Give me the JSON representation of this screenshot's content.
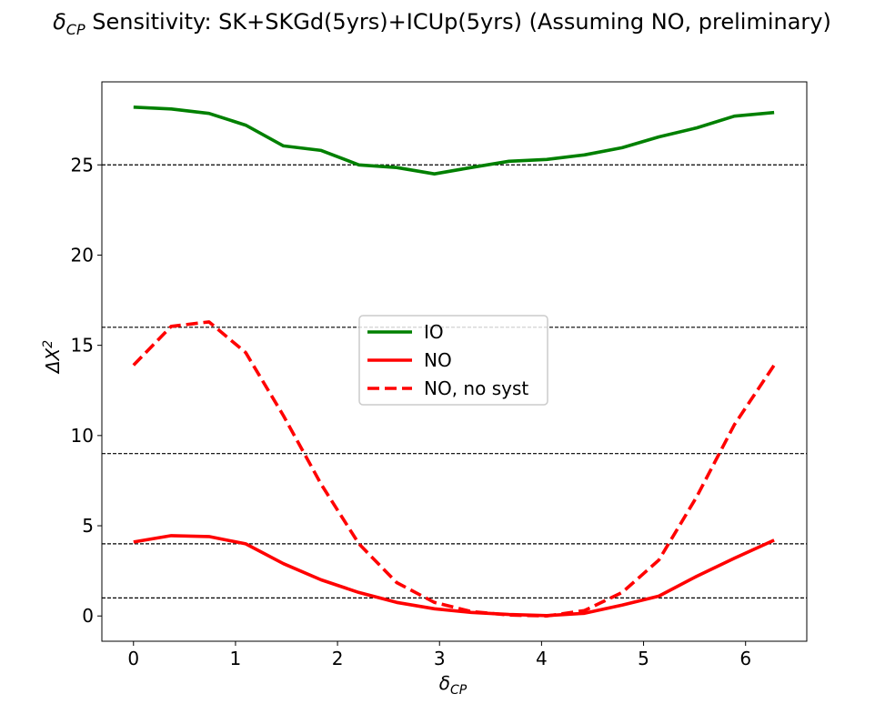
{
  "chart_data": {
    "type": "line",
    "title_main": "δ",
    "title_sub": "CP",
    "title_rest": " Sensitivity: SK+SKGd(5yrs)+ICUp(5yrs) (Assuming NO, preliminary)",
    "xlabel_main": "δ",
    "xlabel_sub": "CP",
    "ylabel_main": "ΔX",
    "ylabel_sup": "2",
    "xlim": [
      -0.31,
      6.6
    ],
    "ylim": [
      -1.4,
      29.6
    ],
    "xticks": [
      0,
      1,
      2,
      3,
      4,
      5,
      6
    ],
    "xtick_labels": [
      "0",
      "1",
      "2",
      "3",
      "4",
      "5",
      "6"
    ],
    "yticks": [
      0,
      5,
      10,
      15,
      20,
      25
    ],
    "ytick_labels": [
      "0",
      "5",
      "10",
      "15",
      "20",
      "25"
    ],
    "reference_lines": [
      1,
      4,
      9,
      16,
      25
    ],
    "legend_placement": "center",
    "grid": false,
    "series": [
      {
        "name": "IO",
        "color": "#008000",
        "style": "solid",
        "x": [
          0,
          0.37,
          0.74,
          1.1,
          1.47,
          1.84,
          2.21,
          2.58,
          2.95,
          3.31,
          3.68,
          4.05,
          4.42,
          4.79,
          5.15,
          5.52,
          5.89,
          6.28
        ],
        "y": [
          28.2,
          28.1,
          27.85,
          27.2,
          26.05,
          25.8,
          25.0,
          24.85,
          24.5,
          24.85,
          25.2,
          25.3,
          25.55,
          25.95,
          26.55,
          27.05,
          27.7,
          27.9
        ]
      },
      {
        "name": "NO",
        "color": "#ff0000",
        "style": "solid",
        "x": [
          0,
          0.37,
          0.74,
          1.1,
          1.47,
          1.84,
          2.21,
          2.58,
          2.95,
          3.31,
          3.68,
          4.05,
          4.42,
          4.79,
          5.15,
          5.52,
          5.89,
          6.28
        ],
        "y": [
          4.1,
          4.45,
          4.4,
          4.0,
          2.9,
          2.0,
          1.3,
          0.75,
          0.4,
          0.2,
          0.08,
          0.02,
          0.15,
          0.6,
          1.1,
          2.2,
          3.2,
          4.2
        ]
      },
      {
        "name": "NO, no syst",
        "color": "#ff0000",
        "style": "dashed",
        "x": [
          0,
          0.37,
          0.74,
          1.1,
          1.47,
          1.84,
          2.21,
          2.58,
          2.95,
          3.31,
          3.68,
          4.05,
          4.42,
          4.79,
          5.15,
          5.52,
          5.89,
          6.28
        ],
        "y": [
          13.9,
          16.05,
          16.3,
          14.6,
          11.1,
          7.3,
          4.0,
          1.85,
          0.75,
          0.25,
          0.05,
          0.0,
          0.3,
          1.3,
          3.1,
          6.6,
          10.6,
          13.9
        ]
      }
    ]
  }
}
